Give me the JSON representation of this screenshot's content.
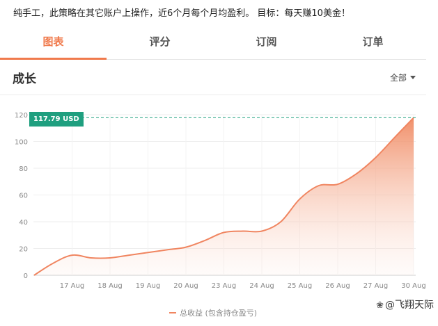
{
  "description": "纯手工，此策略在其它账户上操作，近6个月每个月均盈利。 目标：每天赚10美金！",
  "tabs": [
    {
      "label": "图表",
      "active": true
    },
    {
      "label": "评分",
      "active": false
    },
    {
      "label": "订阅",
      "active": false
    },
    {
      "label": "订单",
      "active": false
    }
  ],
  "section": {
    "title": "成长",
    "filter_label": "全部"
  },
  "value_tag": "117.79 USD",
  "legend_label": "总收益 (包含持仓盈亏)",
  "watermark": "@飞翔天际",
  "colors": {
    "accent": "#f07a4c",
    "line": "#f08560",
    "tag": "#1f9f7f"
  },
  "chart_data": {
    "type": "area",
    "title": "",
    "xlabel": "",
    "ylabel": "",
    "ylim": [
      0,
      120
    ],
    "yticks": [
      "0",
      "20",
      "40",
      "60",
      "80",
      "100",
      "120"
    ],
    "xticks": [
      "17 Aug",
      "18 Aug",
      "19 Aug",
      "20 Aug",
      "23 Aug",
      "24 Aug",
      "25 Aug",
      "26 Aug",
      "27 Aug",
      "30 Aug"
    ],
    "grid": true,
    "series": [
      {
        "name": "总收益 (包含持仓盈亏)",
        "x": [
          -1.0,
          -0.5,
          0.0,
          0.5,
          1.0,
          1.5,
          2.0,
          2.5,
          3.0,
          3.5,
          4.0,
          4.5,
          5.0,
          5.5,
          6.0,
          6.5,
          7.0,
          7.5,
          8.0,
          8.5,
          9.0
        ],
        "values": [
          0,
          9,
          15,
          13,
          13,
          15,
          17,
          19,
          21,
          26,
          32,
          33,
          33,
          40,
          57,
          67,
          68,
          76,
          88,
          103,
          117.79
        ]
      }
    ],
    "reference_line": 117.79
  }
}
